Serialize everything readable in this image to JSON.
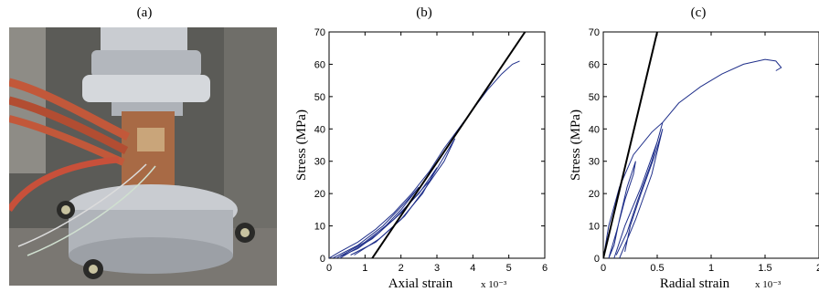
{
  "panels": {
    "a": {
      "label": "(a)"
    },
    "b": {
      "label": "(b)"
    },
    "c": {
      "label": "(c)"
    }
  },
  "photo": {
    "description_icon": "triaxial-test-specimen-photo",
    "colors": {
      "steel": "#b9bdc3",
      "rock": "#a86a45",
      "cable": "#c2583a",
      "background": "#4a4a46"
    }
  },
  "chart_data": [
    {
      "type": "line",
      "title": "(b)",
      "xlabel": "Axial strain",
      "xunit": "x 10⁻³",
      "ylabel": "Stress  (MPa)",
      "xlim": [
        0,
        6
      ],
      "ylim": [
        0,
        70
      ],
      "xticks": [
        "0",
        "1",
        "2",
        "3",
        "4",
        "5",
        "6"
      ],
      "yticks": [
        "0",
        "10",
        "20",
        "30",
        "40",
        "50",
        "60",
        "70"
      ],
      "grid": false,
      "series": [
        {
          "color": "#1f2f8a",
          "style": "loading-unloading-curves",
          "x": [
            0,
            0.3,
            0.8,
            1.3,
            1.8,
            2.3,
            2.8,
            3.2,
            3.6,
            4.0,
            4.4,
            4.8,
            5.1,
            5.3
          ],
          "y": [
            0,
            2,
            5,
            9,
            14,
            20,
            27,
            34,
            40,
            46,
            52,
            57,
            60,
            61
          ]
        },
        {
          "color": "#1f2f8a",
          "style": "cycle",
          "x": [
            0.1,
            0.8,
            1.5,
            2.1,
            2.5,
            2.0,
            1.4,
            0.8,
            0.3
          ],
          "y": [
            0,
            4,
            10,
            17,
            22,
            15,
            8,
            3,
            0.5
          ]
        },
        {
          "color": "#1f2f8a",
          "style": "cycle",
          "x": [
            0.2,
            1.0,
            1.8,
            2.5,
            3.0,
            2.6,
            2.0,
            1.3,
            0.6
          ],
          "y": [
            0,
            5,
            12,
            20,
            28,
            20,
            12,
            5,
            1
          ]
        },
        {
          "color": "#1f2f8a",
          "style": "cycle",
          "x": [
            0.3,
            1.2,
            2.0,
            2.8,
            3.5,
            3.2,
            2.7,
            2.1,
            1.4,
            0.7
          ],
          "y": [
            0,
            6,
            14,
            24,
            37,
            30,
            22,
            13,
            6,
            1
          ]
        },
        {
          "color": "#000000",
          "style": "tangent-line",
          "x": [
            1.2,
            5.45
          ],
          "y": [
            0,
            70
          ]
        }
      ]
    },
    {
      "type": "line",
      "title": "(c)",
      "xlabel": "Radial strain",
      "xunit": "x 10⁻³",
      "ylabel": "Stress  (MPa)",
      "xlim": [
        0,
        2
      ],
      "ylim": [
        0,
        70
      ],
      "xticks": [
        "0",
        "0.5",
        "1",
        "1.5",
        "2"
      ],
      "yticks": [
        "0",
        "10",
        "20",
        "30",
        "40",
        "50",
        "60",
        "70"
      ],
      "grid": false,
      "series": [
        {
          "color": "#1f2f8a",
          "style": "envelope",
          "x": [
            0,
            0.05,
            0.15,
            0.28,
            0.45,
            0.55,
            0.7,
            0.9,
            1.1,
            1.3,
            1.5,
            1.6,
            1.65,
            1.6
          ],
          "y": [
            0,
            10,
            22,
            32,
            39,
            42,
            48,
            53,
            57,
            60,
            61.5,
            61,
            59,
            58
          ]
        },
        {
          "color": "#1f2f8a",
          "style": "cycle",
          "x": [
            0.05,
            0.12,
            0.2,
            0.28,
            0.3,
            0.22,
            0.15,
            0.1,
            0.05
          ],
          "y": [
            0,
            8,
            18,
            26,
            30,
            22,
            12,
            4,
            0
          ]
        },
        {
          "color": "#1f2f8a",
          "style": "cycle",
          "x": [
            0.1,
            0.2,
            0.35,
            0.5,
            0.55,
            0.45,
            0.32,
            0.22,
            0.12
          ],
          "y": [
            0,
            10,
            22,
            36,
            42,
            30,
            18,
            8,
            1
          ]
        },
        {
          "color": "#1f2f8a",
          "style": "cycle",
          "x": [
            0.15,
            0.3,
            0.45,
            0.55,
            0.48,
            0.35,
            0.25,
            0.2
          ],
          "y": [
            0,
            12,
            26,
            40,
            32,
            20,
            10,
            2
          ]
        },
        {
          "color": "#000000",
          "style": "tangent-line",
          "x": [
            0,
            0.5
          ],
          "y": [
            0,
            70
          ]
        }
      ]
    }
  ]
}
